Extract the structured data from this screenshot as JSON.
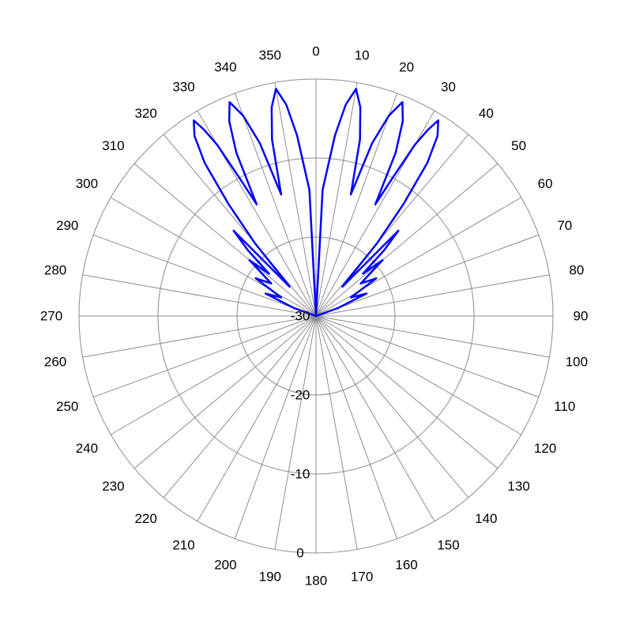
{
  "chart_data": {
    "type": "line",
    "coordinate_system": "polar",
    "angle_unit": "degrees",
    "angle_zero": "top",
    "angle_direction": "clockwise",
    "angle_ticks": [
      "0",
      "10",
      "20",
      "30",
      "40",
      "50",
      "60",
      "70",
      "80",
      "90",
      "100",
      "110",
      "120",
      "130",
      "140",
      "150",
      "160",
      "170",
      "180",
      "190",
      "200",
      "210",
      "220",
      "230",
      "240",
      "250",
      "260",
      "270",
      "280",
      "290",
      "300",
      "310",
      "320",
      "330",
      "340",
      "350"
    ],
    "radial_range": [
      -30,
      0
    ],
    "radial_ticks": [
      "-30",
      "-20",
      "-10",
      "0"
    ],
    "grid": true,
    "legend": "none",
    "series": [
      {
        "color": "#0000ff",
        "theta_deg": [
          0,
          3,
          6,
          8,
          10,
          12,
          14,
          16,
          18,
          20,
          22,
          24,
          26,
          28,
          29,
          30,
          31,
          32,
          34,
          36,
          38,
          40,
          42,
          44,
          46,
          48,
          50,
          54,
          58,
          62,
          66,
          70,
          80,
          90,
          100,
          120,
          140,
          160,
          180,
          200,
          220,
          240,
          260,
          270,
          280,
          290,
          294,
          298,
          302,
          306,
          310,
          312,
          314,
          316,
          318,
          320,
          322,
          324,
          326,
          328,
          329,
          330,
          331,
          332,
          334,
          336,
          338,
          340,
          342,
          344,
          346,
          348,
          350,
          352,
          354,
          357,
          360
        ],
        "r_db": [
          -30,
          -14,
          -7,
          -3,
          -0.8,
          -3,
          -7,
          -14,
          -7,
          -3,
          -0.8,
          -3,
          -7,
          -14,
          -10,
          -5,
          -2.5,
          -0.8,
          -2.5,
          -6,
          -12,
          -18,
          -25,
          -15,
          -18,
          -22,
          -19,
          -23,
          -21,
          -25,
          -23,
          -27,
          -30,
          -30,
          -30,
          -30,
          -30,
          -30,
          -30,
          -30,
          -30,
          -30,
          -30,
          -30,
          -30,
          -27,
          -23,
          -25,
          -21,
          -23,
          -19,
          -22,
          -18,
          -15,
          -25,
          -18,
          -12,
          -6,
          -2.5,
          -0.8,
          -2.5,
          -5,
          -10,
          -14,
          -7,
          -3,
          -0.8,
          -3,
          -7,
          -14,
          -7,
          -3,
          -0.8,
          -3,
          -7,
          -14,
          -30
        ]
      }
    ]
  }
}
